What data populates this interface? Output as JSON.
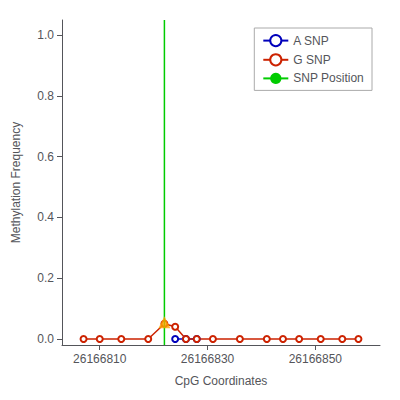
{
  "chart_data": {
    "type": "line",
    "xlabel": "CpG Coordinates",
    "ylabel": "Methylation Frequency",
    "xlim": [
      26166803,
      26166862
    ],
    "ylim": [
      -0.02,
      1.05
    ],
    "xticks": [
      26166810,
      26166830,
      26166850
    ],
    "yticks": [
      {
        "value": 0.0,
        "label": "0.0"
      },
      0.2,
      0.4,
      0.6,
      0.8,
      {
        "value": 1.0,
        "label": "1.0"
      }
    ],
    "grid": false,
    "legend": "upper right",
    "series": [
      {
        "name": "A SNP",
        "type": "line",
        "color": "#0000bb",
        "marker": "circle",
        "x": [
          26166824,
          26166826,
          26166828
        ],
        "values": [
          0.0,
          0.0,
          0.0
        ]
      },
      {
        "name": "G SNP",
        "type": "line",
        "color": "#cc2200",
        "marker": "circle",
        "x": [
          26166807,
          26166810,
          26166814,
          26166819,
          26166822,
          26166824,
          26166826,
          26166828,
          26166831,
          26166836,
          26166841,
          26166844,
          26166847,
          26166851,
          26166855,
          26166858
        ],
        "values": [
          0.0,
          0.0,
          0.0,
          0.0,
          0.05,
          0.04,
          0.0,
          0.0,
          0.0,
          0.0,
          0.0,
          0.0,
          0.0,
          0.0,
          0.0,
          0.0
        ]
      },
      {
        "name": "SNP Position",
        "type": "vline",
        "color": "#00cc00",
        "x": 26166822
      },
      {
        "type": "scatter",
        "marker": "triangle",
        "color": "#FFA500",
        "x": [
          26166822
        ],
        "values": [
          0.055
        ]
      }
    ]
  }
}
